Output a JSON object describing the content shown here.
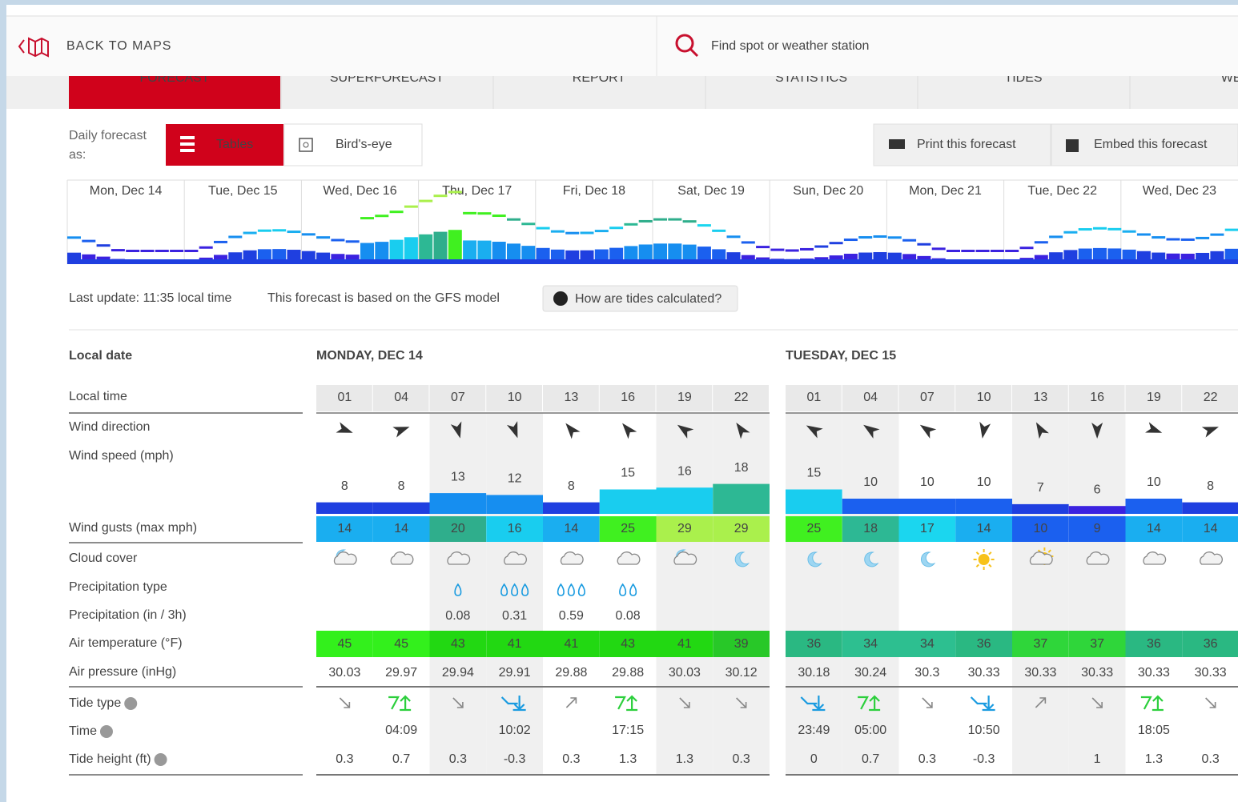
{
  "header": {
    "back": "BACK TO MAPS",
    "search": "Find spot or weather station"
  },
  "tabs": [
    "FORECAST",
    "SUPERFORECAST",
    "REPORT",
    "STATISTICS",
    "TIDES",
    "WEB"
  ],
  "toolbar": {
    "label": "Daily forecast as:",
    "tables": "Tables",
    "birdseye": "Bird's-eye",
    "print": "Print this forecast",
    "embed": "Embed this forecast"
  },
  "strip_days": [
    "Mon, Dec 14",
    "Tue, Dec 15",
    "Wed, Dec 16",
    "Thu, Dec 17",
    "Fri, Dec 18",
    "Sat, Dec 19",
    "Sun, Dec 20",
    "Mon, Dec 21",
    "Tue, Dec 22",
    "Wed, Dec 23"
  ],
  "info": {
    "last_update": "Last update: 11:35 local time",
    "model": "This forecast is based on the GFS model",
    "tides_button": "How are tides calculated?"
  },
  "table": {
    "row_labels": {
      "date": "Local date",
      "time": "Local time",
      "wind_dir": "Wind direction",
      "wind_speed": "Wind speed (mph)",
      "wind_gusts": "Wind gusts (max mph)",
      "cloud": "Cloud cover",
      "precip_type": "Precipitation type",
      "precip": "Precipitation (in / 3h)",
      "temp": "Air temperature (°F)",
      "pressure": "Air pressure (inHg)",
      "tide_type": "Tide type",
      "tide_time": "Time",
      "tide_height": "Tide height (ft)"
    },
    "days": [
      {
        "title": "MONDAY, DEC 14",
        "times": [
          "01",
          "04",
          "07",
          "10",
          "13",
          "16",
          "19",
          "22"
        ],
        "wind_dir": [
          110,
          70,
          165,
          160,
          320,
          320,
          305,
          325
        ],
        "wind_speed": [
          8,
          8,
          13,
          12,
          8,
          15,
          16,
          18
        ],
        "wind_gusts": [
          14,
          14,
          20,
          16,
          14,
          25,
          29,
          29
        ],
        "cloud": [
          "partly_night",
          "cloud",
          "cloud",
          "cloud",
          "cloud",
          "cloud",
          "partly_night",
          "moon"
        ],
        "precip_drops": [
          0,
          0,
          1,
          3,
          3,
          2,
          0,
          0
        ],
        "precip": [
          null,
          null,
          0.08,
          0.31,
          0.59,
          0.08,
          null,
          null
        ],
        "temp": [
          45,
          45,
          43,
          41,
          41,
          43,
          41,
          39
        ],
        "pressure": [
          30.03,
          29.97,
          29.94,
          29.91,
          29.88,
          29.88,
          30.03,
          30.12
        ],
        "tide_type": [
          "falling",
          "high",
          "falling",
          "low",
          "rising",
          "high",
          "falling",
          "falling"
        ],
        "tide_time": [
          null,
          "04:09",
          null,
          "10:02",
          null,
          "17:15",
          null,
          null
        ],
        "tide_height": [
          0.3,
          0.7,
          0.3,
          -0.3,
          0.3,
          1.3,
          1.3,
          0.3
        ]
      },
      {
        "title": "TUESDAY, DEC 15",
        "times": [
          "01",
          "04",
          "07",
          "10",
          "13",
          "16",
          "19",
          "22"
        ],
        "wind_dir": [
          300,
          305,
          305,
          190,
          330,
          180,
          110,
          70
        ],
        "wind_speed": [
          15,
          10,
          10,
          10,
          7,
          6,
          10,
          8
        ],
        "wind_gusts": [
          25,
          18,
          17,
          14,
          10,
          9,
          14,
          14
        ],
        "cloud": [
          "moon",
          "moon",
          "moon",
          "sun",
          "partly_day",
          "cloud",
          "cloud",
          "cloud"
        ],
        "precip_drops": [
          0,
          0,
          0,
          0,
          0,
          0,
          0,
          0
        ],
        "precip": [
          null,
          null,
          null,
          null,
          null,
          null,
          null,
          null
        ],
        "temp": [
          36,
          34,
          34,
          36,
          37,
          37,
          36,
          36
        ],
        "pressure": [
          30.18,
          30.24,
          30.3,
          30.33,
          30.33,
          30.33,
          30.33,
          30.33
        ],
        "tide_type": [
          "low",
          "high",
          "falling",
          "low",
          "rising",
          "falling",
          "high",
          "falling"
        ],
        "tide_time": [
          "23:49",
          "05:00",
          null,
          "10:50",
          null,
          null,
          "18:05",
          null
        ],
        "tide_height": [
          0,
          0.7,
          0.3,
          -0.3,
          null,
          1,
          1.3,
          0.3
        ]
      }
    ]
  }
}
